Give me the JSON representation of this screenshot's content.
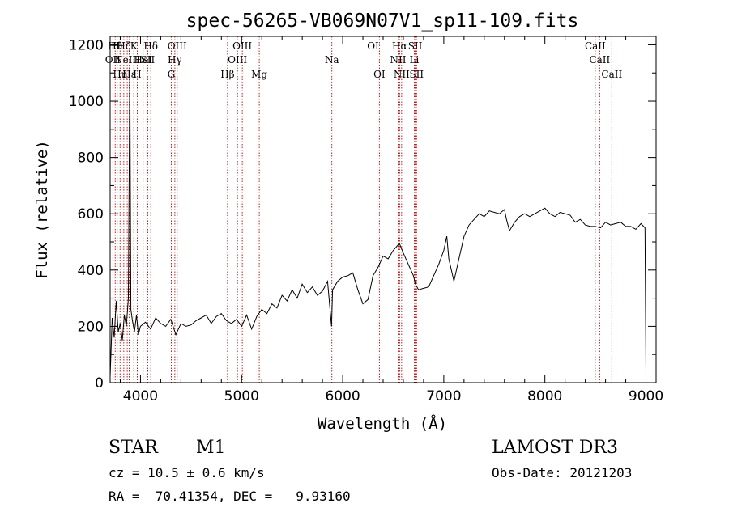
{
  "chart_data": {
    "type": "line",
    "title": "spec-56265-VB069N07V1_sp11-109.fits",
    "xlabel": "Wavelength (Å)",
    "ylabel": "Flux (relative)",
    "xlim": [
      3700,
      9100
    ],
    "ylim": [
      0,
      1230
    ],
    "x_ticks": [
      4000,
      5000,
      6000,
      7000,
      8000,
      9000
    ],
    "x_tick_labels": [
      "4000",
      "5000",
      "6000",
      "7000",
      "8000",
      "9000"
    ],
    "y_ticks": [
      0,
      200,
      400,
      600,
      800,
      1000,
      1200
    ],
    "y_tick_labels": [
      "0",
      "200",
      "400",
      "600",
      "800",
      "1000",
      "1200"
    ],
    "line_color": "#000000",
    "marker_color": "#cc0000",
    "series": [
      {
        "name": "spectrum",
        "x": [
          3700,
          3720,
          3740,
          3760,
          3780,
          3800,
          3820,
          3840,
          3860,
          3880,
          3895,
          3905,
          3920,
          3940,
          3960,
          3980,
          4000,
          4050,
          4100,
          4150,
          4200,
          4250,
          4300,
          4350,
          4400,
          4450,
          4500,
          4550,
          4600,
          4650,
          4700,
          4750,
          4800,
          4850,
          4900,
          4950,
          5000,
          5050,
          5100,
          5150,
          5200,
          5250,
          5300,
          5350,
          5400,
          5450,
          5500,
          5550,
          5600,
          5650,
          5700,
          5750,
          5800,
          5850,
          5890,
          5900,
          5950,
          6000,
          6050,
          6100,
          6150,
          6200,
          6250,
          6300,
          6350,
          6400,
          6450,
          6500,
          6550,
          6560,
          6600,
          6650,
          6700,
          6720,
          6750,
          6800,
          6850,
          6900,
          6950,
          7000,
          7030,
          7050,
          7100,
          7150,
          7200,
          7250,
          7300,
          7350,
          7400,
          7450,
          7500,
          7550,
          7600,
          7620,
          7650,
          7700,
          7750,
          7800,
          7850,
          7900,
          7950,
          8000,
          8050,
          8100,
          8150,
          8200,
          8250,
          8300,
          8350,
          8400,
          8450,
          8500,
          8550,
          8600,
          8650,
          8700,
          8750,
          8800,
          8850,
          8900,
          8950,
          8990,
          9000
        ],
        "y": [
          20,
          230,
          160,
          290,
          180,
          210,
          150,
          240,
          200,
          300,
          1120,
          260,
          220,
          180,
          240,
          170,
          200,
          215,
          190,
          230,
          210,
          200,
          225,
          170,
          210,
          200,
          205,
          220,
          230,
          240,
          210,
          235,
          245,
          220,
          210,
          225,
          200,
          240,
          190,
          235,
          260,
          245,
          280,
          265,
          310,
          290,
          330,
          300,
          350,
          320,
          340,
          310,
          325,
          360,
          200,
          330,
          360,
          375,
          380,
          390,
          330,
          280,
          295,
          380,
          410,
          450,
          440,
          470,
          490,
          495,
          460,
          420,
          380,
          350,
          330,
          335,
          340,
          380,
          420,
          470,
          520,
          440,
          360,
          440,
          520,
          560,
          580,
          600,
          590,
          610,
          605,
          600,
          615,
          580,
          540,
          570,
          590,
          600,
          590,
          600,
          610,
          620,
          600,
          590,
          605,
          600,
          595,
          570,
          580,
          560,
          555,
          555,
          550,
          570,
          560,
          565,
          570,
          555,
          555,
          545,
          565,
          550,
          40
        ]
      }
    ],
    "line_markers": [
      {
        "wl": 3727,
        "label": "OII",
        "row": 2
      },
      {
        "wl": 3750,
        "label": "Hθ",
        "row": 1
      },
      {
        "wl": 3770,
        "label": "Hι",
        "row": 1
      },
      {
        "wl": 3798,
        "label": "Hη",
        "row": 3
      },
      {
        "wl": 3835,
        "label": "Hζ",
        "row": 1
      },
      {
        "wl": 3869,
        "label": "NeIII",
        "row": 2
      },
      {
        "wl": 3889,
        "label": "Hε",
        "row": 3
      },
      {
        "wl": 3934,
        "label": "K",
        "row": 1
      },
      {
        "wl": 3968,
        "label": "H",
        "row": 3
      },
      {
        "wl": 4026,
        "label": "HeI",
        "row": 2
      },
      {
        "wl": 4072,
        "label": "SII",
        "row": 2
      },
      {
        "wl": 4102,
        "label": "Hδ",
        "row": 1
      },
      {
        "wl": 4305,
        "label": "G",
        "row": 3
      },
      {
        "wl": 4340,
        "label": "Hγ",
        "row": 2
      },
      {
        "wl": 4363,
        "label": "OIII",
        "row": 1
      },
      {
        "wl": 4861,
        "label": "Hβ",
        "row": 3
      },
      {
        "wl": 4959,
        "label": "OIII",
        "row": 2
      },
      {
        "wl": 5007,
        "label": "OIII",
        "row": 1
      },
      {
        "wl": 5175,
        "label": "Mg",
        "row": 3
      },
      {
        "wl": 5893,
        "label": "Na",
        "row": 2
      },
      {
        "wl": 6300,
        "label": "OI",
        "row": 1
      },
      {
        "wl": 6363,
        "label": "OI",
        "row": 3
      },
      {
        "wl": 6548,
        "label": "NII",
        "row": 2
      },
      {
        "wl": 6563,
        "label": "Hα",
        "row": 1
      },
      {
        "wl": 6583,
        "label": "NII",
        "row": 3
      },
      {
        "wl": 6708,
        "label": "Li",
        "row": 2
      },
      {
        "wl": 6717,
        "label": "SII",
        "row": 1
      },
      {
        "wl": 6731,
        "label": "SII",
        "row": 3
      },
      {
        "wl": 8498,
        "label": "CaII",
        "row": 1
      },
      {
        "wl": 8542,
        "label": "CaII",
        "row": 2
      },
      {
        "wl": 8662,
        "label": "CaII",
        "row": 3
      }
    ]
  },
  "info": {
    "object_class": "STAR",
    "subclass": "M1",
    "survey": "LAMOST DR3",
    "redshift_text": "cz = 10.5 ± 0.6 km/s",
    "obs_date_text": "Obs-Date: 20121203",
    "coords_text": "RA =  70.41354, DEC =   9.93160"
  }
}
